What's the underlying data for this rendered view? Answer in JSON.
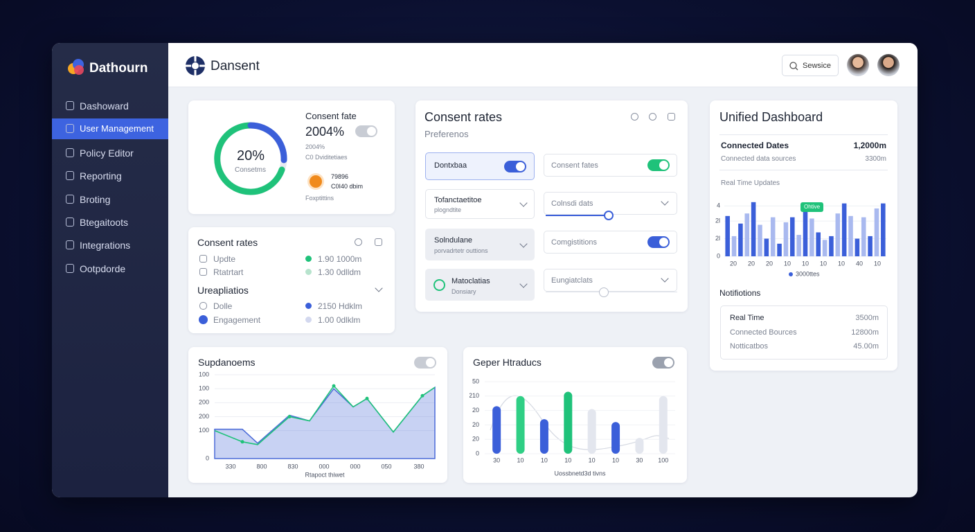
{
  "sidebar": {
    "brand": "Dathourn",
    "items": [
      "Dashoward",
      "User Management",
      "Policy Editor",
      "Reporting",
      "Broting",
      "Btegaitoots",
      "Integrations",
      "Ootpdorde"
    ]
  },
  "header": {
    "brand": "Dansent",
    "search": "Sewsice"
  },
  "consent_card": {
    "ring_value": "20%",
    "ring_label": "Consetms",
    "title": "Consent fate",
    "value": "2004%",
    "detail_value": "2004%",
    "detail_label": "C0 Dviditetiaes",
    "item_value": "79896",
    "item_label": "C0I40 dbim",
    "footer": "Foxptittins"
  },
  "rates_card": {
    "title": "Consent rates",
    "rows": [
      {
        "label": "Updte",
        "value": "1.90 1000m"
      },
      {
        "label": "Rtatrtart",
        "value": "1.30 0dlldm"
      }
    ],
    "section": "Ureapliatios",
    "section_rows": [
      {
        "label": "Dolle",
        "value": "2150 Hdklm"
      },
      {
        "label": "Engagement",
        "value": "1.00 0dlklm"
      }
    ]
  },
  "controls_card": {
    "title": "Consent rates",
    "subtitle": "Preferenos",
    "controls": [
      {
        "label": "Dontxbaa"
      },
      {
        "label": "Consent fates"
      },
      {
        "label": "Tofanctaetitoe",
        "sub": "plogndtite"
      },
      {
        "label": "Colnsdi dats"
      },
      {
        "label": "Solndulane",
        "sub": "porvadrtetr outtions"
      },
      {
        "label": "Comgistitions"
      },
      {
        "label": "Matoclatias",
        "sub": "Donsiary"
      },
      {
        "label": "Eungiatclats"
      }
    ]
  },
  "unified": {
    "title": "Unified Dashboard",
    "stats": [
      {
        "label": "Connected Dates",
        "value": "1,2000m"
      },
      {
        "label": "Connected data sources",
        "value": "3300m"
      }
    ],
    "chart": {
      "type": "bar",
      "title": "Real Time Updates",
      "annotation": "Ohtive",
      "ylim": [
        0,
        4.4
      ],
      "yticks": [
        0,
        {
          "value": 1.4,
          "label": "2l"
        },
        {
          "value": 2.8,
          "label": "2l"
        },
        4
      ],
      "x_labels": [
        "20",
        "20",
        "20",
        "10",
        "10",
        "10",
        "10",
        "40",
        "10"
      ],
      "series": [
        {
          "name": "3000ttes",
          "colors": [
            "#3b5fd9",
            "#a9b9ef"
          ],
          "values": [
            3.2,
            1.6,
            2.6,
            3.4,
            4.3,
            2.5,
            1.4,
            3.1,
            1.0,
            2.7,
            3.1,
            1.7,
            3.6,
            3.0,
            1.9,
            1.3,
            1.6,
            3.4,
            4.2,
            3.2,
            1.4,
            3.1,
            1.6,
            3.8,
            4.2
          ]
        }
      ]
    },
    "notifications": {
      "title": "Notifiotions",
      "rows": [
        {
          "label": "Real Time",
          "value": "3500m"
        },
        {
          "label": "Connected Bources",
          "value": "12800m"
        },
        {
          "label": "Notticatbos",
          "value": "45.00m"
        }
      ]
    }
  },
  "area_card": {
    "title": "Supdanoems",
    "chart": {
      "type": "area",
      "xlabel": "Rtapoct thiwet",
      "xlim": [
        0,
        318
      ],
      "ylim": [
        0,
        600
      ],
      "xticks": [
        {
          "value": 23,
          "label": "330"
        },
        {
          "value": 68,
          "label": "800"
        },
        {
          "value": 113,
          "label": "830"
        },
        {
          "value": 158,
          "label": "000"
        },
        {
          "value": 203,
          "label": "000"
        },
        {
          "value": 248,
          "label": "050"
        },
        {
          "value": 295,
          "label": "380"
        }
      ],
      "yticks": [
        0,
        {
          "value": 200,
          "label": "100"
        },
        {
          "value": 300,
          "label": "200"
        },
        {
          "value": 400,
          "label": "200"
        },
        {
          "value": 500,
          "label": "100"
        },
        {
          "value": 600,
          "label": "100"
        }
      ],
      "x": [
        0,
        40,
        62,
        108,
        137,
        172,
        200,
        220,
        258,
        300,
        318
      ],
      "series": [
        {
          "type": "area",
          "color": "#4a6ad8",
          "values": [
            210,
            210,
            110,
            310,
            270,
            500,
            370,
            430,
            190,
            450,
            510
          ]
        },
        {
          "type": "line",
          "color": "#1fc27a",
          "values": [
            200,
            120,
            100,
            300,
            270,
            520,
            370,
            430,
            190,
            450,
            510
          ]
        }
      ]
    }
  },
  "capsule_card": {
    "title": "Geper Htraducs",
    "chart": {
      "type": "bar",
      "xlabel": "Uossbnetd3d tivns",
      "ylim": [
        0,
        50
      ],
      "yticks": [
        0,
        {
          "value": 10,
          "label": "20"
        },
        {
          "value": 20,
          "label": "20"
        },
        {
          "value": 30,
          "label": "20"
        },
        {
          "value": 40,
          "label": "210"
        },
        50
      ],
      "categories": [
        "30",
        "10",
        "10",
        "10",
        "10",
        "10",
        "30",
        "100"
      ],
      "values": [
        33,
        40,
        24,
        43,
        31,
        22,
        11,
        40
      ],
      "colors": [
        "#3b5fd9",
        "#2fcf85",
        "#3b5fd9",
        "#1fc27a",
        "#e3e6ee",
        "#3b5fd9",
        "#e3e6ee",
        "#e3e6ee"
      ]
    }
  }
}
